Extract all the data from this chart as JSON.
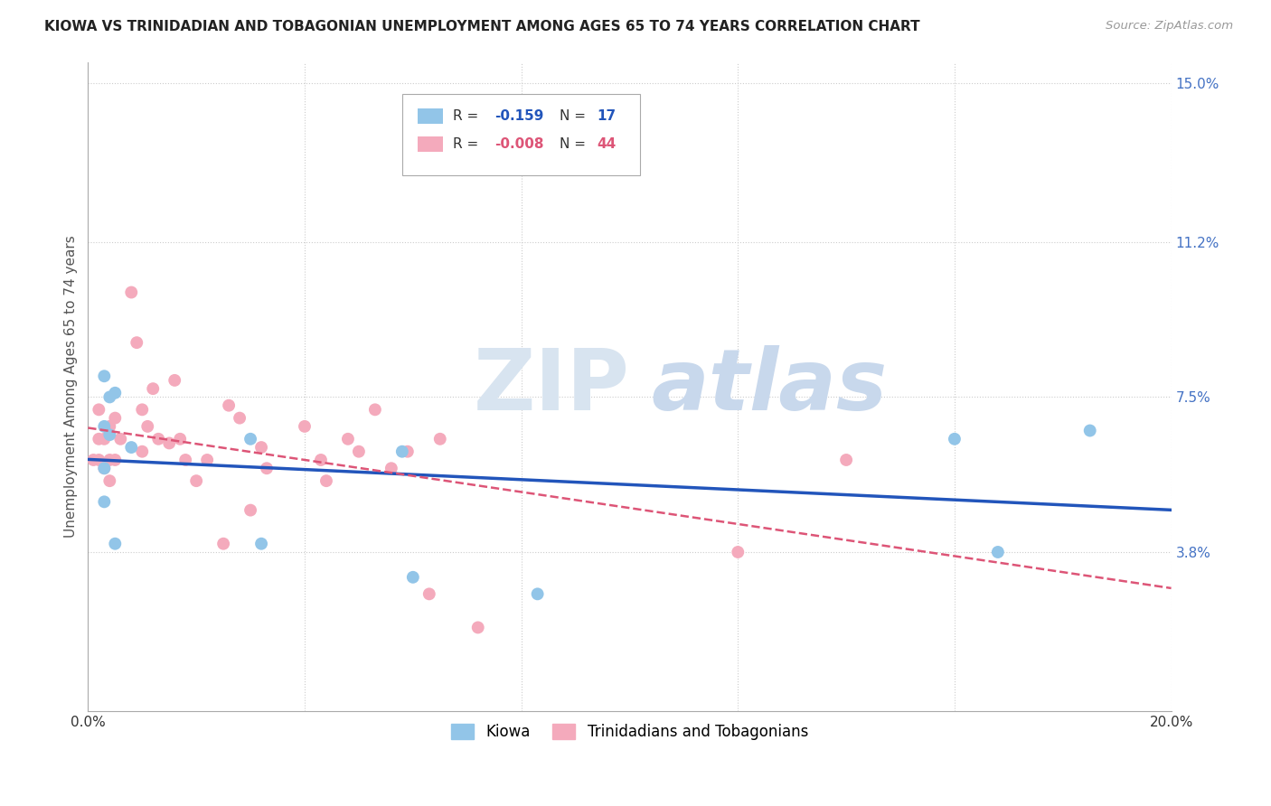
{
  "title": "KIOWA VS TRINIDADIAN AND TOBAGONIAN UNEMPLOYMENT AMONG AGES 65 TO 74 YEARS CORRELATION CHART",
  "source": "Source: ZipAtlas.com",
  "ylabel": "Unemployment Among Ages 65 to 74 years",
  "xlim": [
    0.0,
    0.2
  ],
  "ylim": [
    0.0,
    0.155
  ],
  "xticks": [
    0.0,
    0.04,
    0.08,
    0.12,
    0.16,
    0.2
  ],
  "xticklabels": [
    "0.0%",
    "",
    "",
    "",
    "",
    "20.0%"
  ],
  "ytick_right_labels": [
    "15.0%",
    "11.2%",
    "7.5%",
    "3.8%"
  ],
  "ytick_right_values": [
    0.15,
    0.112,
    0.075,
    0.038
  ],
  "kiowa_R": "-0.159",
  "kiowa_N": "17",
  "tt_R": "-0.008",
  "tt_N": "44",
  "kiowa_color": "#92C5E8",
  "tt_color": "#F4AABC",
  "kiowa_line_color": "#2255BB",
  "tt_line_color": "#DD5577",
  "kiowa_x": [
    0.003,
    0.003,
    0.003,
    0.003,
    0.004,
    0.004,
    0.005,
    0.005,
    0.008,
    0.03,
    0.032,
    0.058,
    0.06,
    0.083,
    0.16,
    0.168,
    0.185
  ],
  "kiowa_y": [
    0.05,
    0.068,
    0.08,
    0.058,
    0.066,
    0.075,
    0.076,
    0.04,
    0.063,
    0.065,
    0.04,
    0.062,
    0.032,
    0.028,
    0.065,
    0.038,
    0.067
  ],
  "tt_x": [
    0.001,
    0.002,
    0.002,
    0.002,
    0.003,
    0.003,
    0.004,
    0.004,
    0.004,
    0.005,
    0.005,
    0.006,
    0.008,
    0.009,
    0.01,
    0.01,
    0.011,
    0.012,
    0.013,
    0.015,
    0.016,
    0.017,
    0.018,
    0.02,
    0.022,
    0.025,
    0.026,
    0.028,
    0.03,
    0.032,
    0.033,
    0.04,
    0.043,
    0.044,
    0.048,
    0.05,
    0.053,
    0.056,
    0.059,
    0.063,
    0.065,
    0.072,
    0.12,
    0.14
  ],
  "tt_y": [
    0.06,
    0.06,
    0.065,
    0.072,
    0.058,
    0.065,
    0.055,
    0.06,
    0.068,
    0.06,
    0.07,
    0.065,
    0.1,
    0.088,
    0.072,
    0.062,
    0.068,
    0.077,
    0.065,
    0.064,
    0.079,
    0.065,
    0.06,
    0.055,
    0.06,
    0.04,
    0.073,
    0.07,
    0.048,
    0.063,
    0.058,
    0.068,
    0.06,
    0.055,
    0.065,
    0.062,
    0.072,
    0.058,
    0.062,
    0.028,
    0.065,
    0.02,
    0.038,
    0.06
  ],
  "background_color": "#FFFFFF",
  "grid_color": "#CCCCCC",
  "marker_size": 100
}
